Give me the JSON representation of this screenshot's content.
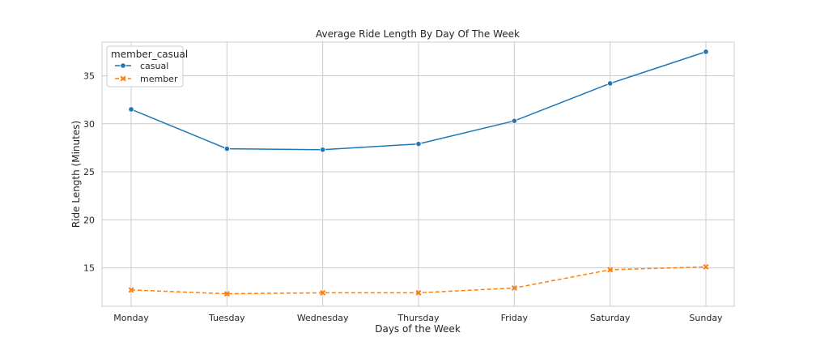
{
  "chart_data": {
    "type": "line",
    "title": "Average Ride Length By Day Of The Week",
    "xlabel": "Days of the Week",
    "ylabel": "Ride Length (Minutes)",
    "categories": [
      "Monday",
      "Tuesday",
      "Wednesday",
      "Thursday",
      "Friday",
      "Saturday",
      "Sunday"
    ],
    "ylim": [
      11.0,
      38.5
    ],
    "yticks": [
      15,
      20,
      25,
      30,
      35
    ],
    "grid": true,
    "legend": {
      "title": "member_casual",
      "position": "top-left"
    },
    "series": [
      {
        "name": "casual",
        "values": [
          31.5,
          27.4,
          27.3,
          27.9,
          30.3,
          34.2,
          37.5
        ],
        "color": "#1f77b4",
        "marker": "circle",
        "linestyle": "solid"
      },
      {
        "name": "member",
        "values": [
          12.7,
          12.3,
          12.4,
          12.4,
          12.9,
          14.8,
          15.1
        ],
        "color": "#ff7f0e",
        "marker": "x",
        "linestyle": "dashed"
      }
    ]
  }
}
